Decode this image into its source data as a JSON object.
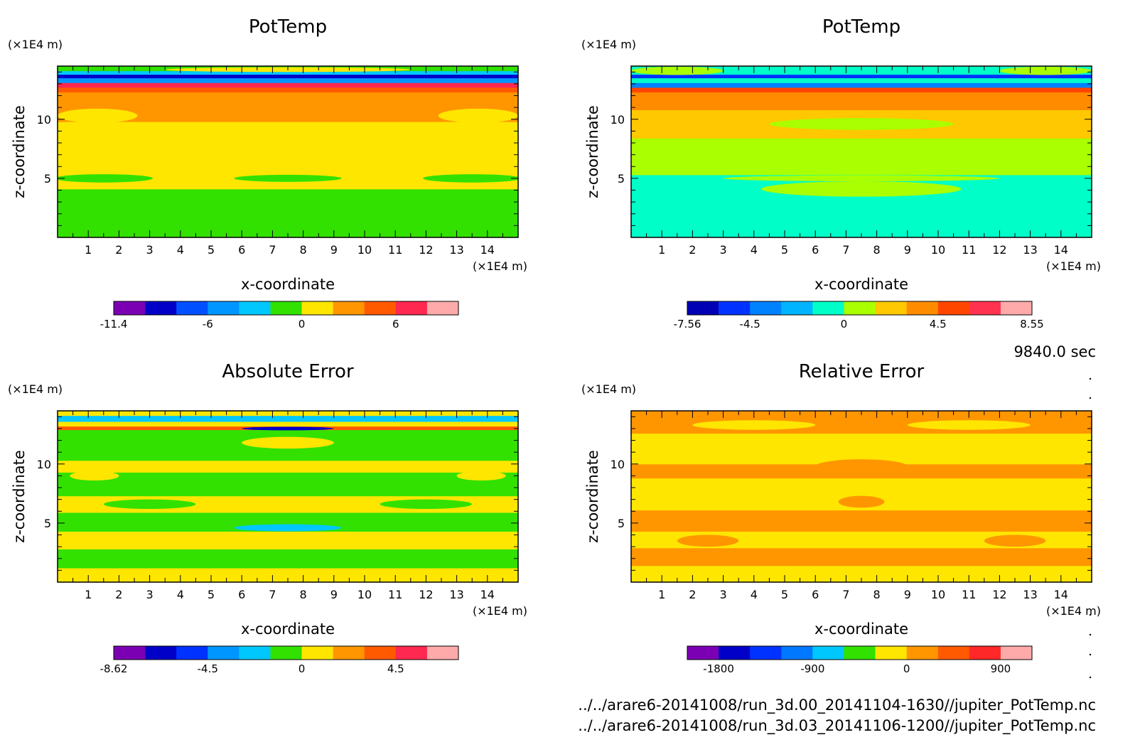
{
  "time_label": "9840.0 sec",
  "footer": {
    "line1": "../../arare6-20141008/run_3d.00_20141104-1630//jupiter_PotTemp.nc",
    "line2": "../../arare6-20141008/run_3d.03_20141106-1200//jupiter_PotTemp.nc"
  },
  "chart_data": [
    {
      "type": "heatmap",
      "title": "PotTemp",
      "xlabel": "x-coordinate",
      "ylabel": "z-coordinate",
      "x_unit": "(×1E4 m)",
      "y_unit": "(×1E4 m)",
      "xlim": [
        0,
        15
      ],
      "ylim": [
        0,
        14.5
      ],
      "xticks": [
        "1",
        "2",
        "3",
        "4",
        "5",
        "6",
        "7",
        "8",
        "9",
        "10",
        "11",
        "12",
        "13",
        "14"
      ],
      "yticks": [
        "5",
        "10"
      ],
      "colorbar": {
        "colors": [
          "#7b00b4",
          "#0000c8",
          "#0050ff",
          "#0096ff",
          "#00c8ff",
          "#32e100",
          "#ffe600",
          "#ff9600",
          "#ff5a00",
          "#ff2850",
          "#ffaaaa"
        ],
        "labels": [
          "-11.4",
          "-6",
          "0",
          "6"
        ],
        "label_index": [
          0,
          3,
          6,
          9
        ]
      },
      "bands": [
        {
          "z0": 0,
          "z1": 4.1,
          "level": 5
        },
        {
          "z0": 4.1,
          "z1": 9.8,
          "level": 6
        },
        {
          "z0": 9.8,
          "z1": 12.3,
          "level": 7
        },
        {
          "z0": 12.3,
          "z1": 12.7,
          "level": 8
        },
        {
          "z0": 12.7,
          "z1": 13.1,
          "level": 9
        },
        {
          "z0": 13.1,
          "z1": 13.5,
          "level": 3
        },
        {
          "z0": 13.5,
          "z1": 13.8,
          "level": 1
        },
        {
          "z0": 13.8,
          "z1": 14.1,
          "level": 4
        },
        {
          "z0": 14.1,
          "z1": 14.5,
          "level": 5
        }
      ],
      "patches": [
        {
          "x": 1.5,
          "z": 5.0,
          "w": 3.2,
          "h": 0.7,
          "level": 5
        },
        {
          "x": 7.5,
          "z": 5.0,
          "w": 3.5,
          "h": 0.6,
          "level": 5
        },
        {
          "x": 13.5,
          "z": 5.0,
          "w": 3.2,
          "h": 0.7,
          "level": 5
        },
        {
          "x": 1.3,
          "z": 10.3,
          "w": 2.6,
          "h": 1.2,
          "level": 6
        },
        {
          "x": 13.7,
          "z": 10.3,
          "w": 2.6,
          "h": 1.2,
          "level": 6
        },
        {
          "x": 7.5,
          "z": 12.5,
          "w": 5.0,
          "h": 0.3,
          "level": 8
        },
        {
          "x": 7.5,
          "z": 14.2,
          "w": 8.0,
          "h": 0.4,
          "level": 6
        }
      ]
    },
    {
      "type": "heatmap",
      "title": "PotTemp",
      "xlabel": "x-coordinate",
      "ylabel": "z-coordinate",
      "x_unit": "(×1E4 m)",
      "y_unit": "(×1E4 m)",
      "xlim": [
        0,
        15
      ],
      "ylim": [
        0,
        14.5
      ],
      "xticks": [
        "1",
        "2",
        "3",
        "4",
        "5",
        "6",
        "7",
        "8",
        "9",
        "10",
        "11",
        "12",
        "13",
        "14"
      ],
      "yticks": [
        "5",
        "10"
      ],
      "colorbar": {
        "colors": [
          "#0000b4",
          "#0032ff",
          "#0082ff",
          "#00b4ff",
          "#00ffc8",
          "#aaff00",
          "#ffc800",
          "#ff8c00",
          "#ff4600",
          "#ff3250",
          "#ffaaaa"
        ],
        "labels": [
          "-7.56",
          "-4.5",
          "0",
          "4.5",
          "8.55"
        ],
        "label_index": [
          0,
          2,
          5,
          8,
          11
        ]
      },
      "bands": [
        {
          "z0": 0,
          "z1": 5.3,
          "level": 4
        },
        {
          "z0": 5.3,
          "z1": 8.4,
          "level": 5
        },
        {
          "z0": 8.4,
          "z1": 10.8,
          "level": 6
        },
        {
          "z0": 10.8,
          "z1": 12.3,
          "level": 7
        },
        {
          "z0": 12.3,
          "z1": 12.7,
          "level": 8
        },
        {
          "z0": 12.7,
          "z1": 13.1,
          "level": 2
        },
        {
          "z0": 13.1,
          "z1": 13.5,
          "level": 4
        },
        {
          "z0": 13.5,
          "z1": 13.8,
          "level": 1
        },
        {
          "z0": 13.8,
          "z1": 14.5,
          "level": 4
        }
      ],
      "patches": [
        {
          "x": 7.5,
          "z": 4.1,
          "w": 6.5,
          "h": 1.3,
          "level": 5
        },
        {
          "x": 7.5,
          "z": 5.0,
          "w": 9.0,
          "h": 0.5,
          "level": 5
        },
        {
          "x": 7.5,
          "z": 9.6,
          "w": 6.0,
          "h": 1.0,
          "level": 5
        },
        {
          "x": 1.5,
          "z": 11.2,
          "w": 2.4,
          "h": 0.8,
          "level": 7
        },
        {
          "x": 13.5,
          "z": 11.2,
          "w": 2.4,
          "h": 0.8,
          "level": 7
        },
        {
          "x": 1.5,
          "z": 14.1,
          "w": 3.0,
          "h": 0.7,
          "level": 5
        },
        {
          "x": 13.5,
          "z": 14.1,
          "w": 3.0,
          "h": 0.7,
          "level": 5
        }
      ]
    },
    {
      "type": "heatmap",
      "title": "Absolute Error",
      "xlabel": "x-coordinate",
      "ylabel": "z-coordinate",
      "x_unit": "(×1E4 m)",
      "y_unit": "(×1E4 m)",
      "xlim": [
        0,
        15
      ],
      "ylim": [
        0,
        14.5
      ],
      "xticks": [
        "1",
        "2",
        "3",
        "4",
        "5",
        "6",
        "7",
        "8",
        "9",
        "10",
        "11",
        "12",
        "13",
        "14"
      ],
      "yticks": [
        "5",
        "10"
      ],
      "colorbar": {
        "colors": [
          "#7b00b4",
          "#0000c8",
          "#0032ff",
          "#0096ff",
          "#00c8ff",
          "#32e100",
          "#ffe600",
          "#ff9600",
          "#ff5a00",
          "#ff2850",
          "#ffaaaa"
        ],
        "labels": [
          "-8.62",
          "-4.5",
          "0",
          "4.5"
        ],
        "label_index": [
          0,
          3,
          6,
          9
        ]
      },
      "bands": [
        {
          "z0": 0,
          "z1": 1.2,
          "level": 6
        },
        {
          "z0": 1.2,
          "z1": 2.8,
          "level": 5
        },
        {
          "z0": 2.8,
          "z1": 4.3,
          "level": 6
        },
        {
          "z0": 4.3,
          "z1": 5.9,
          "level": 5
        },
        {
          "z0": 5.9,
          "z1": 7.3,
          "level": 6
        },
        {
          "z0": 7.3,
          "z1": 9.3,
          "level": 5
        },
        {
          "z0": 9.3,
          "z1": 10.3,
          "level": 6
        },
        {
          "z0": 10.3,
          "z1": 12.9,
          "level": 5
        },
        {
          "z0": 12.9,
          "z1": 13.2,
          "level": 8
        },
        {
          "z0": 13.2,
          "z1": 13.6,
          "level": 6
        },
        {
          "z0": 13.6,
          "z1": 14.1,
          "level": 4
        },
        {
          "z0": 14.1,
          "z1": 14.5,
          "level": 6
        }
      ],
      "patches": [
        {
          "x": 7.5,
          "z": 4.6,
          "w": 3.5,
          "h": 0.6,
          "level": 4
        },
        {
          "x": 3.0,
          "z": 6.6,
          "w": 3.0,
          "h": 0.8,
          "level": 5
        },
        {
          "x": 12.0,
          "z": 6.6,
          "w": 3.0,
          "h": 0.8,
          "level": 5
        },
        {
          "x": 1.2,
          "z": 9.0,
          "w": 1.6,
          "h": 0.8,
          "level": 6
        },
        {
          "x": 13.8,
          "z": 9.0,
          "w": 1.6,
          "h": 0.8,
          "level": 6
        },
        {
          "x": 7.5,
          "z": 11.8,
          "w": 3.0,
          "h": 1.0,
          "level": 6
        },
        {
          "x": 7.5,
          "z": 13.0,
          "w": 3.0,
          "h": 0.3,
          "level": 1
        }
      ]
    },
    {
      "type": "heatmap",
      "title": "Relative Error",
      "xlabel": "x-coordinate",
      "ylabel": "z-coordinate",
      "x_unit": "(×1E4 m)",
      "y_unit": "(×1E4 m)",
      "xlim": [
        0,
        15
      ],
      "ylim": [
        0,
        14.5
      ],
      "xticks": [
        "1",
        "2",
        "3",
        "4",
        "5",
        "6",
        "7",
        "8",
        "9",
        "10",
        "11",
        "12",
        "13",
        "14"
      ],
      "yticks": [
        "5",
        "10"
      ],
      "colorbar": {
        "colors": [
          "#7b00b4",
          "#0000c8",
          "#0032ff",
          "#0078ff",
          "#00c8ff",
          "#32e100",
          "#ffe600",
          "#ff9600",
          "#ff5a00",
          "#ff2828",
          "#ffaaaa"
        ],
        "labels": [
          "-1800",
          "-900",
          "0",
          "900"
        ],
        "label_index": [
          1,
          4,
          7,
          10
        ]
      },
      "bands": [
        {
          "z0": 0,
          "z1": 1.4,
          "level": 6
        },
        {
          "z0": 1.4,
          "z1": 2.9,
          "level": 7
        },
        {
          "z0": 2.9,
          "z1": 4.3,
          "level": 6
        },
        {
          "z0": 4.3,
          "z1": 6.1,
          "level": 7
        },
        {
          "z0": 6.1,
          "z1": 8.8,
          "level": 6
        },
        {
          "z0": 8.8,
          "z1": 10.0,
          "level": 7
        },
        {
          "z0": 10.0,
          "z1": 12.6,
          "level": 6
        },
        {
          "z0": 12.6,
          "z1": 14.5,
          "level": 7
        }
      ],
      "patches": [
        {
          "x": 7.5,
          "z": 9.8,
          "w": 3.0,
          "h": 1.2,
          "level": 7
        },
        {
          "x": 7.5,
          "z": 6.8,
          "w": 1.5,
          "h": 1.0,
          "level": 7
        },
        {
          "x": 2.5,
          "z": 3.5,
          "w": 2.0,
          "h": 1.0,
          "level": 7
        },
        {
          "x": 12.5,
          "z": 3.5,
          "w": 2.0,
          "h": 1.0,
          "level": 7
        },
        {
          "x": 4.0,
          "z": 13.3,
          "w": 4.0,
          "h": 0.8,
          "level": 6
        },
        {
          "x": 11.0,
          "z": 13.3,
          "w": 4.0,
          "h": 0.8,
          "level": 6
        }
      ]
    }
  ]
}
